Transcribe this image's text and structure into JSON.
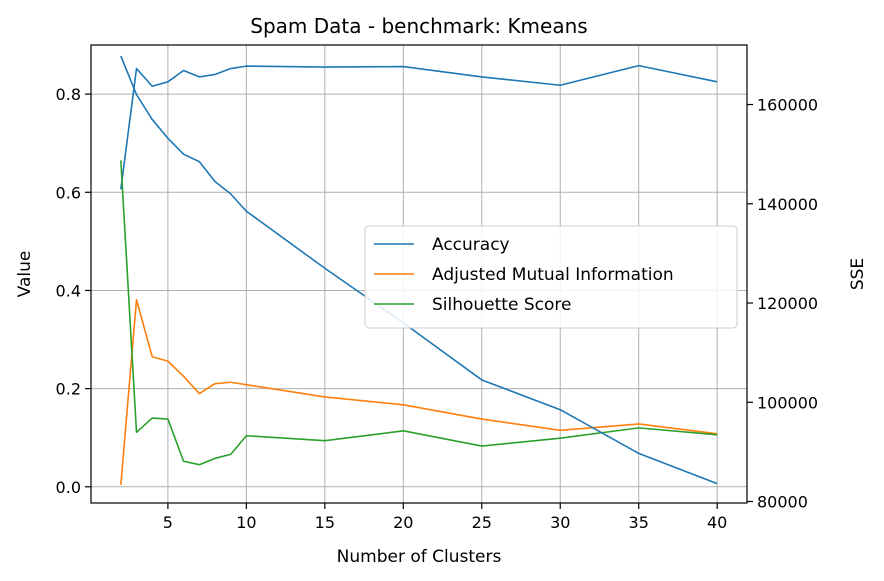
{
  "chart_data": {
    "type": "line",
    "title": "Spam Data - benchmark: Kmeans",
    "xlabel": "Number of Clusters",
    "ylabel": "Value",
    "y2label": "SSE",
    "xlim": [
      0.1,
      41.9
    ],
    "ylim": [
      -0.033,
      0.9
    ],
    "y2lim": [
      79700,
      172000
    ],
    "grid": true,
    "legend_position": "center-right",
    "x_ticks": [
      5,
      10,
      15,
      20,
      25,
      30,
      35,
      40
    ],
    "y_ticks": [
      0.0,
      0.2,
      0.4,
      0.6,
      0.8
    ],
    "y2_ticks": [
      80000,
      100000,
      120000,
      140000,
      160000
    ],
    "series": [
      {
        "name": "Accuracy",
        "axis": "left",
        "color": "#1f77b4",
        "x": [
          2,
          3,
          4,
          5,
          6,
          7,
          8,
          9,
          10,
          15,
          20,
          25,
          30,
          35,
          40
        ],
        "y": [
          0.606,
          0.852,
          0.816,
          0.825,
          0.848,
          0.835,
          0.84,
          0.852,
          0.857,
          0.855,
          0.856,
          0.835,
          0.818,
          0.858,
          0.825
        ]
      },
      {
        "name": "Adjusted Mutual Information",
        "axis": "left",
        "color": "#ff7f0e",
        "x": [
          2,
          3,
          4,
          5,
          6,
          7,
          8,
          9,
          10,
          15,
          20,
          25,
          30,
          35,
          40
        ],
        "y": [
          0.004,
          0.381,
          0.265,
          0.256,
          0.225,
          0.19,
          0.21,
          0.213,
          0.208,
          0.183,
          0.167,
          0.138,
          0.115,
          0.128,
          0.108
        ]
      },
      {
        "name": "Silhouette Score",
        "axis": "left",
        "color": "#2ca02c",
        "x": [
          2,
          3,
          4,
          5,
          6,
          7,
          8,
          9,
          10,
          15,
          20,
          25,
          30,
          35,
          40
        ],
        "y": [
          0.665,
          0.111,
          0.14,
          0.138,
          0.052,
          0.045,
          0.058,
          0.066,
          0.104,
          0.094,
          0.114,
          0.083,
          0.099,
          0.12,
          0.106
        ]
      },
      {
        "axis": "right",
        "color": "#1f77b4",
        "x": [
          2,
          3,
          4,
          5,
          6,
          7,
          8,
          9,
          10,
          15,
          20,
          25,
          30,
          35,
          40
        ],
        "y": [
          169800,
          162000,
          157000,
          153200,
          150000,
          148500,
          144500,
          142000,
          138500,
          127000,
          116000,
          104500,
          98500,
          89700,
          83600
        ]
      }
    ]
  }
}
